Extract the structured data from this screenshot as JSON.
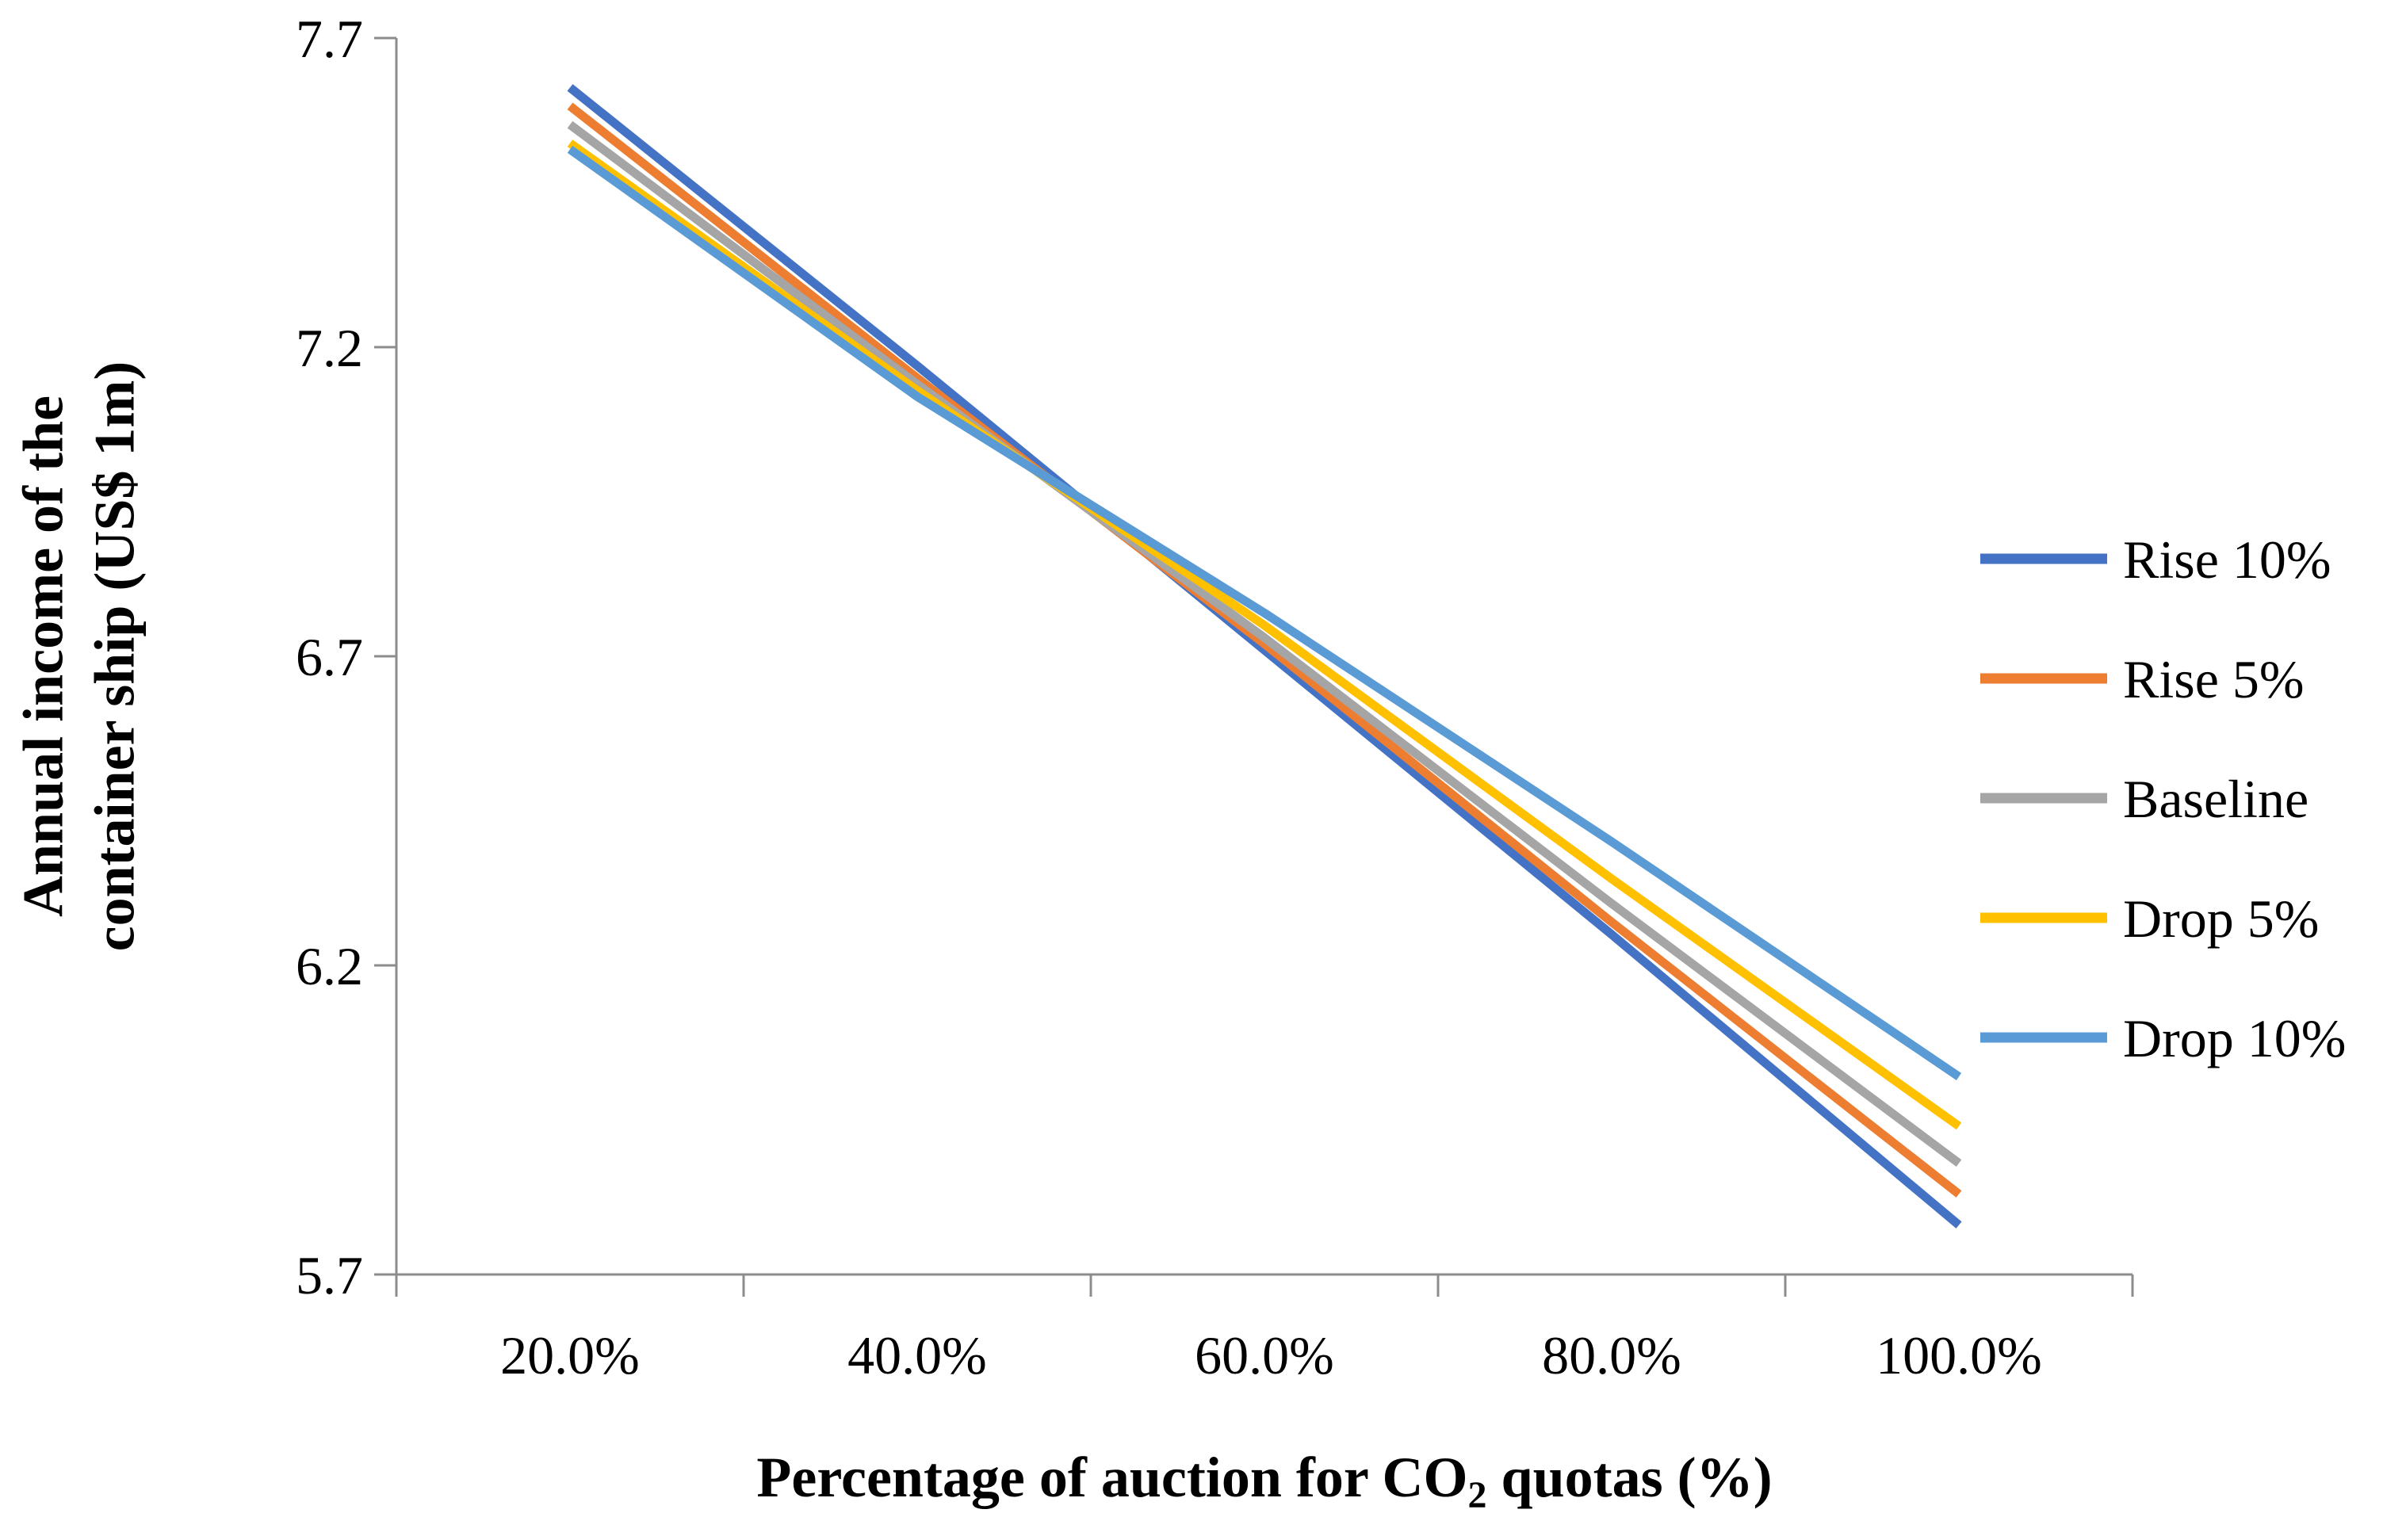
{
  "chart_data": {
    "type": "line",
    "title": "",
    "x": [
      0.2,
      0.4,
      0.6,
      0.8,
      1.0
    ],
    "xtick_labels": [
      "20.0%",
      "40.0%",
      "60.0%",
      "80.0%",
      "100.0%"
    ],
    "ytick_labels": [
      "5.7",
      "6.2",
      "6.7",
      "7.2",
      "7.7"
    ],
    "yticks": [
      5.7,
      6.2,
      6.7,
      7.2,
      7.7
    ],
    "ylim": [
      5.7,
      7.7
    ],
    "xlabel_parts": {
      "before": "Percentage of auction for CO",
      "sub": "2",
      "after": " quotas (%)"
    },
    "ylabel_lines": [
      "Annual income of the",
      "container ship (US$ 1m)"
    ],
    "legend_position": "right",
    "grid": false,
    "series": [
      {
        "name": "Rise 10%",
        "color": "#4472C4",
        "values": [
          7.62,
          7.17,
          6.71,
          6.25,
          5.78
        ]
      },
      {
        "name": "Rise 5%",
        "color": "#ED7D31",
        "values": [
          7.59,
          7.15,
          6.72,
          6.27,
          5.83
        ]
      },
      {
        "name": "Baseline",
        "color": "#A5A5A5",
        "values": [
          7.56,
          7.14,
          6.73,
          6.3,
          5.88
        ]
      },
      {
        "name": "Drop 5%",
        "color": "#FFC000",
        "values": [
          7.53,
          7.13,
          6.75,
          6.34,
          5.94
        ]
      },
      {
        "name": "Drop 10%",
        "color": "#5B9BD5",
        "values": [
          7.52,
          7.12,
          6.77,
          6.4,
          6.02
        ]
      }
    ],
    "colors": {
      "axis": "#8c8c8c",
      "text": "#000000"
    }
  }
}
